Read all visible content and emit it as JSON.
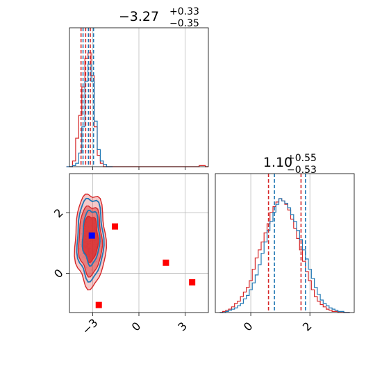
{
  "colors": {
    "red": "#d62728",
    "blue": "#1f77b4",
    "marker_red": "#ff0000",
    "marker_blue": "#0000ff",
    "grid": "#b0b0b0"
  },
  "panel_titles": [
    {
      "value": "−3.27",
      "plus": "+0.33",
      "minus": "−0.35"
    },
    {
      "value": "1.10",
      "plus": "+0.55",
      "minus": "−0.53"
    }
  ],
  "chart_data": [
    {
      "type": "histogram",
      "panel": "top-left",
      "xlim": [
        -4.5,
        4.5
      ],
      "grid": true,
      "quantiles": {
        "red": [
          -3.75,
          -3.45,
          -3.15
        ],
        "blue": [
          -3.62,
          -3.27,
          -2.94
        ]
      },
      "series": [
        {
          "color": "red",
          "x": [
            -4.6,
            -4.4,
            -4.2,
            -4.0,
            -3.8,
            -3.6,
            -3.4,
            -3.2,
            -3.0,
            -2.8,
            -2.6,
            -2.4,
            -2.2,
            -2.0,
            -1.8,
            -1.6,
            -1.4,
            -1.2,
            -1.0,
            -0.8,
            -0.6,
            -0.4,
            -0.2,
            0.0,
            0.2,
            0.4,
            0.6,
            0.8,
            1.0,
            1.2,
            1.4,
            1.6,
            1.8,
            2.0,
            2.2,
            2.4,
            2.6,
            2.8,
            3.0,
            3.2,
            3.4,
            3.6,
            3.8,
            4.0,
            4.2,
            4.4
          ],
          "values": [
            0,
            0,
            0.05,
            0.25,
            0.45,
            0.7,
            0.95,
            1.0,
            0.8,
            0.35,
            0.1,
            0.03,
            0,
            0,
            0,
            0,
            0,
            0,
            0,
            0,
            0,
            0,
            0,
            0,
            0,
            0,
            0,
            0,
            0,
            0,
            0,
            0,
            0,
            0,
            0,
            0,
            0,
            0,
            0,
            0,
            0,
            0,
            0,
            0.01,
            0.01,
            0
          ]
        },
        {
          "color": "blue",
          "x": [
            -4.6,
            -4.4,
            -4.2,
            -4.0,
            -3.8,
            -3.6,
            -3.4,
            -3.2,
            -3.0,
            -2.8,
            -2.6,
            -2.4,
            -2.2,
            -2.0,
            -1.8
          ],
          "values": [
            0,
            0,
            0.01,
            0.03,
            0.12,
            0.35,
            0.75,
            0.9,
            0.75,
            0.4,
            0.15,
            0.05,
            0.02,
            0,
            0
          ]
        }
      ]
    },
    {
      "type": "contour",
      "panel": "bottom-left",
      "xlim": [
        -4.5,
        4.5
      ],
      "ylim": [
        -1.3,
        3.3
      ],
      "xticks": [
        "−3",
        "0",
        "3"
      ],
      "yticks": [
        "0",
        "2"
      ],
      "grid": true,
      "contours_red": [
        {
          "cx": -3.15,
          "cy": 1.1,
          "rx": 1.0,
          "ry": 1.55,
          "level": "outer"
        },
        {
          "cx": -3.15,
          "cy": 1.1,
          "rx": 0.75,
          "ry": 1.15,
          "level": "mid"
        },
        {
          "cx": -3.15,
          "cy": 1.15,
          "rx": 0.5,
          "ry": 0.75,
          "level": "inner"
        }
      ],
      "contours_blue": [
        {
          "cx": -3.15,
          "cy": 1.15,
          "rx": 0.85,
          "ry": 1.35
        },
        {
          "cx": -3.1,
          "cy": 1.2,
          "rx": 0.55,
          "ry": 0.9
        }
      ],
      "markers": {
        "red_squares": [
          {
            "x": -1.55,
            "y": 1.55
          },
          {
            "x": 1.75,
            "y": 0.35
          },
          {
            "x": 3.45,
            "y": -0.3
          },
          {
            "x": -2.6,
            "y": -1.05
          }
        ],
        "blue_square": {
          "x": -3.05,
          "y": 1.25
        }
      }
    },
    {
      "type": "histogram",
      "panel": "bottom-right",
      "xlim": [
        -1.2,
        3.5
      ],
      "xticks": [
        "0",
        "2"
      ],
      "grid": true,
      "quantiles": {
        "red": [
          0.6,
          1.7
        ],
        "blue": [
          0.8,
          1.85
        ]
      },
      "series": [
        {
          "color": "red",
          "x": [
            -1.0,
            -0.9,
            -0.8,
            -0.7,
            -0.6,
            -0.5,
            -0.4,
            -0.3,
            -0.2,
            -0.1,
            0.0,
            0.1,
            0.2,
            0.3,
            0.4,
            0.5,
            0.6,
            0.7,
            0.8,
            0.9,
            1.0,
            1.1,
            1.2,
            1.3,
            1.4,
            1.5,
            1.6,
            1.7,
            1.8,
            1.9,
            2.0,
            2.1,
            2.2,
            2.3,
            2.4,
            2.5,
            2.6,
            2.7,
            2.8,
            2.9,
            3.0,
            3.1,
            3.2,
            3.3
          ],
          "values": [
            0,
            0.01,
            0.02,
            0.03,
            0.05,
            0.08,
            0.1,
            0.14,
            0.18,
            0.22,
            0.28,
            0.38,
            0.48,
            0.55,
            0.62,
            0.7,
            0.78,
            0.88,
            0.93,
            0.97,
            1.0,
            0.98,
            0.95,
            0.9,
            0.82,
            0.74,
            0.65,
            0.55,
            0.45,
            0.36,
            0.28,
            0.2,
            0.14,
            0.1,
            0.07,
            0.05,
            0.03,
            0.02,
            0.01,
            0.01,
            0,
            0,
            0,
            0
          ]
        },
        {
          "color": "blue",
          "x": [
            -1.0,
            -0.9,
            -0.8,
            -0.7,
            -0.6,
            -0.5,
            -0.4,
            -0.3,
            -0.2,
            -0.1,
            0.0,
            0.1,
            0.2,
            0.3,
            0.4,
            0.5,
            0.6,
            0.7,
            0.8,
            0.9,
            1.0,
            1.1,
            1.2,
            1.3,
            1.4,
            1.5,
            1.6,
            1.7,
            1.8,
            1.9,
            2.0,
            2.1,
            2.2,
            2.3,
            2.4,
            2.5,
            2.6,
            2.7,
            2.8,
            2.9,
            3.0,
            3.1,
            3.2,
            3.3
          ],
          "values": [
            0,
            0,
            0.01,
            0.02,
            0.03,
            0.04,
            0.06,
            0.08,
            0.12,
            0.15,
            0.2,
            0.26,
            0.33,
            0.42,
            0.52,
            0.62,
            0.72,
            0.8,
            0.88,
            0.95,
            1.0,
            0.98,
            0.96,
            0.92,
            0.86,
            0.8,
            0.72,
            0.64,
            0.55,
            0.47,
            0.38,
            0.3,
            0.22,
            0.16,
            0.11,
            0.08,
            0.06,
            0.04,
            0.03,
            0.02,
            0.01,
            0.01,
            0,
            0
          ]
        }
      ]
    }
  ]
}
